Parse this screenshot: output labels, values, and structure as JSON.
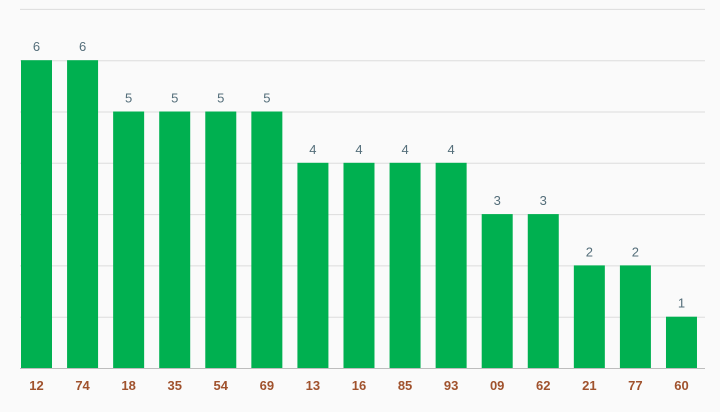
{
  "chart_data": {
    "type": "bar",
    "categories": [
      "12",
      "74",
      "18",
      "35",
      "54",
      "69",
      "13",
      "16",
      "85",
      "93",
      "09",
      "62",
      "21",
      "77",
      "60"
    ],
    "values": [
      6,
      6,
      5,
      5,
      5,
      5,
      4,
      4,
      4,
      4,
      3,
      3,
      2,
      2,
      1
    ],
    "title": "",
    "xlabel": "",
    "ylabel": "",
    "ylim": [
      0,
      7
    ],
    "grid": true,
    "data_labels": true,
    "legend": "none",
    "colors": {
      "bar": "#00b050",
      "tick_label": "#a0522d",
      "data_label": "#546e7a",
      "grid": "#dcdcdc",
      "background": "#fafafa"
    }
  }
}
